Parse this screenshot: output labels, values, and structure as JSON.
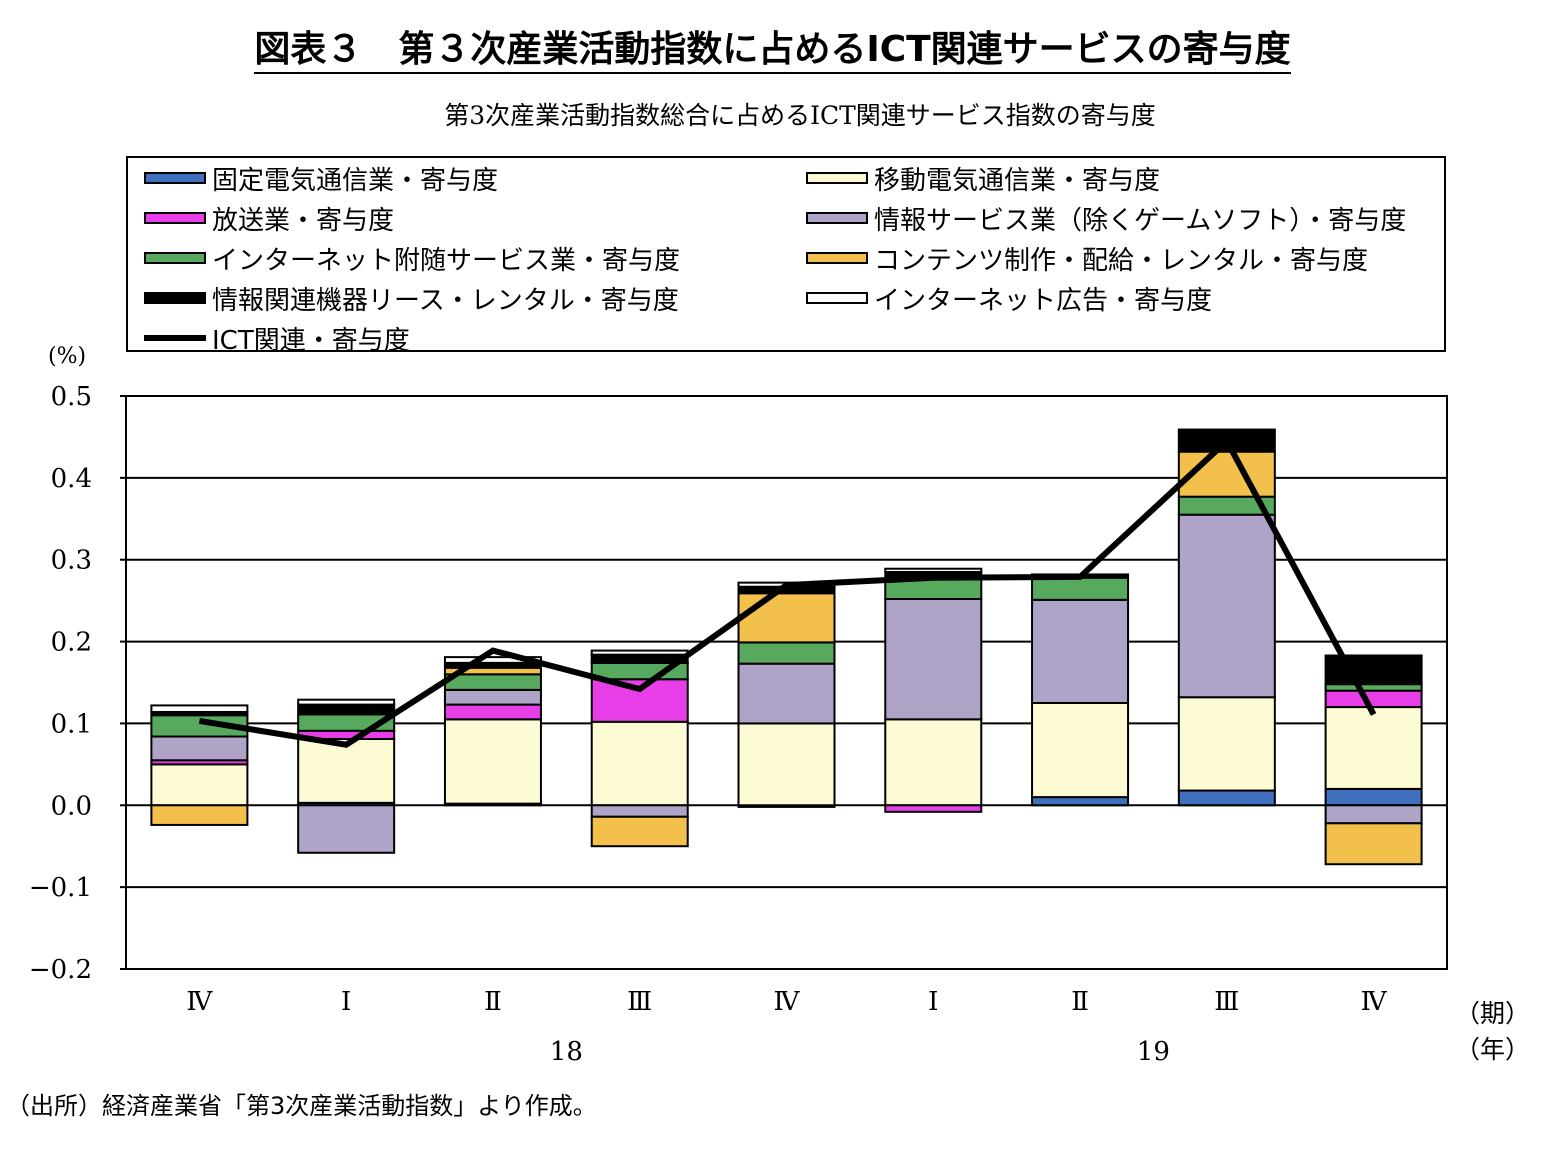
{
  "figure": {
    "title": "図表３　第３次産業活動指数に占めるICT関連サービスの寄与度",
    "source": "（出所）経済産業省「第3次産業活動指数」より作成。"
  },
  "chart_data": {
    "type": "bar",
    "stacked": true,
    "title": "第3次産業活動指数総合に占めるICT関連サービス指数の寄与度",
    "unit_label": "(%)",
    "xlabel_period": "（期）",
    "xlabel_year": "（年）",
    "categories": [
      "Ⅳ",
      "Ⅰ",
      "Ⅱ",
      "Ⅲ",
      "Ⅳ",
      "Ⅰ",
      "Ⅱ",
      "Ⅲ",
      "Ⅳ"
    ],
    "year_labels": [
      {
        "label": "18",
        "category_index": 2.5
      },
      {
        "label": "19",
        "category_index": 6.5
      }
    ],
    "ylim": [
      -0.2,
      0.5
    ],
    "yticks": [
      "0.5",
      "0.4",
      "0.3",
      "0.2",
      "0.1",
      "0.0",
      "−0.1",
      "−0.2"
    ],
    "grid": true,
    "legend_position": "top",
    "series": [
      {
        "name": "固定電気通信業・寄与度",
        "color": "#3f6fbd",
        "values": [
          0.0,
          0.003,
          0.002,
          0.0,
          -0.002,
          0.0,
          0.01,
          0.018,
          0.02
        ]
      },
      {
        "name": "移動電気通信業・寄与度",
        "color": "#fdfbd3",
        "values": [
          0.05,
          0.078,
          0.103,
          0.102,
          0.1,
          0.105,
          0.115,
          0.114,
          0.1
        ]
      },
      {
        "name": "放送業・寄与度",
        "color": "#e83ee8",
        "values": [
          0.005,
          0.01,
          0.018,
          0.052,
          0.0,
          -0.008,
          0.0,
          0.0,
          0.02
        ]
      },
      {
        "name": "情報サービス業（除くゲームソフト）・寄与度",
        "color": "#b0a3c8",
        "values": [
          0.029,
          -0.058,
          0.018,
          -0.014,
          0.073,
          0.147,
          0.126,
          0.223,
          -0.022
        ]
      },
      {
        "name": "インターネット附随サービス業・寄与度",
        "color": "#56a95d",
        "values": [
          0.026,
          0.02,
          0.019,
          0.02,
          0.026,
          0.026,
          0.027,
          0.022,
          0.008
        ]
      },
      {
        "name": "コンテンツ制作・配給・レンタル・寄与度",
        "color": "#f2c04b",
        "values": [
          -0.024,
          0.0,
          0.008,
          -0.036,
          0.06,
          0.0,
          0.0,
          0.055,
          -0.05
        ]
      },
      {
        "name": "情報関連機器リース・レンタル・寄与度",
        "color": "#000000",
        "values": [
          0.004,
          0.012,
          0.006,
          0.01,
          0.008,
          0.007,
          0.003,
          0.027,
          0.035
        ]
      },
      {
        "name": "インターネット広告・寄与度",
        "color": "#ffffff",
        "values": [
          0.008,
          0.006,
          0.007,
          0.005,
          0.005,
          0.004,
          0.001,
          0.0,
          0.0
        ]
      }
    ],
    "line": {
      "name": "ICT関連・寄与度",
      "color": "#000000",
      "values": [
        0.103,
        0.074,
        0.189,
        0.142,
        0.269,
        0.278,
        0.279,
        0.445,
        0.111
      ]
    }
  }
}
